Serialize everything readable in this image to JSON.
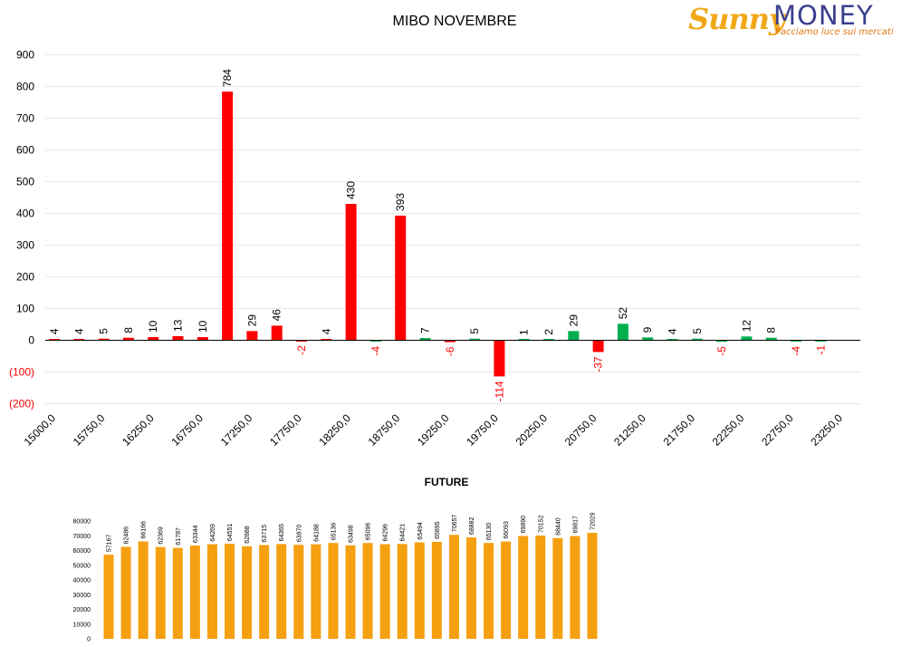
{
  "logo": {
    "brand_part1": "Sunny",
    "brand_part2": "MONEY",
    "tagline": "Facciamo luce sui mercati",
    "colors": {
      "sun": "#f0a818",
      "money": "#3a3f8f",
      "tagline": "#e07818"
    }
  },
  "chart_data": [
    {
      "type": "bar",
      "title": "MIBO NOVEMBRE",
      "xlabel": "",
      "ylabel": "",
      "ylim": [
        -200,
        900
      ],
      "y_ticks": [
        -200,
        -100,
        0,
        100,
        200,
        300,
        400,
        500,
        600,
        700,
        800,
        900
      ],
      "y_tick_labels": [
        "(200)",
        "(100)",
        "0",
        "100",
        "200",
        "300",
        "400",
        "500",
        "600",
        "700",
        "800",
        "900"
      ],
      "x_tick_labels": [
        "15000,0",
        "15750,0",
        "16250,0",
        "16750,0",
        "17250,0",
        "17750,0",
        "18250,0",
        "18750,0",
        "19250,0",
        "19750,0",
        "20250,0",
        "20750,0",
        "21250,0",
        "21750,0",
        "22250,0",
        "22750,0",
        "23250,0"
      ],
      "grid": true,
      "legend": "none",
      "colors": {
        "red": "#ff0000",
        "green": "#00b050",
        "negative_label": "#ff0000"
      },
      "series": [
        {
          "bars": [
            {
              "v": 4,
              "c": "red"
            },
            {
              "v": 4,
              "c": "red"
            },
            {
              "v": 5,
              "c": "red"
            },
            {
              "v": 8,
              "c": "red"
            },
            {
              "v": 10,
              "c": "red"
            },
            {
              "v": 13,
              "c": "red"
            },
            {
              "v": 10,
              "c": "red"
            },
            {
              "v": 784,
              "c": "red"
            },
            {
              "v": 29,
              "c": "red"
            },
            {
              "v": 46,
              "c": "red"
            },
            {
              "v": -2,
              "c": "red"
            },
            {
              "v": 4,
              "c": "red"
            },
            {
              "v": 430,
              "c": "red"
            },
            {
              "v": -4,
              "c": "green"
            },
            {
              "v": 393,
              "c": "red"
            },
            {
              "v": 7,
              "c": "green"
            },
            {
              "v": -6,
              "c": "red"
            },
            {
              "v": 5,
              "c": "green"
            },
            {
              "v": -114,
              "c": "red"
            },
            {
              "v": 1,
              "c": "green"
            },
            {
              "v": 2,
              "c": "green"
            },
            {
              "v": 29,
              "c": "green"
            },
            {
              "v": -37,
              "c": "red"
            },
            {
              "v": 52,
              "c": "green"
            },
            {
              "v": 9,
              "c": "green"
            },
            {
              "v": 4,
              "c": "green"
            },
            {
              "v": 5,
              "c": "green"
            },
            {
              "v": -5,
              "c": "green"
            },
            {
              "v": 12,
              "c": "green"
            },
            {
              "v": 8,
              "c": "green"
            },
            {
              "v": -4,
              "c": "green"
            },
            {
              "v": -1,
              "c": "green"
            }
          ]
        }
      ]
    },
    {
      "type": "bar",
      "title": "FUTURE",
      "xlabel": "",
      "ylabel": "",
      "ylim": [
        0,
        80000
      ],
      "y_ticks": [
        0,
        10000,
        20000,
        30000,
        40000,
        50000,
        60000,
        70000,
        80000
      ],
      "grid": false,
      "legend": "none",
      "colors": {
        "bar": "#f5a010"
      },
      "values": [
        57167,
        62486,
        66166,
        62369,
        61787,
        63344,
        64269,
        64551,
        62888,
        63715,
        64365,
        63870,
        64188,
        65136,
        63498,
        65096,
        64296,
        64421,
        65494,
        65895,
        70657,
        68882,
        65130,
        66093,
        69890,
        70152,
        68440,
        69817,
        72029
      ]
    }
  ]
}
